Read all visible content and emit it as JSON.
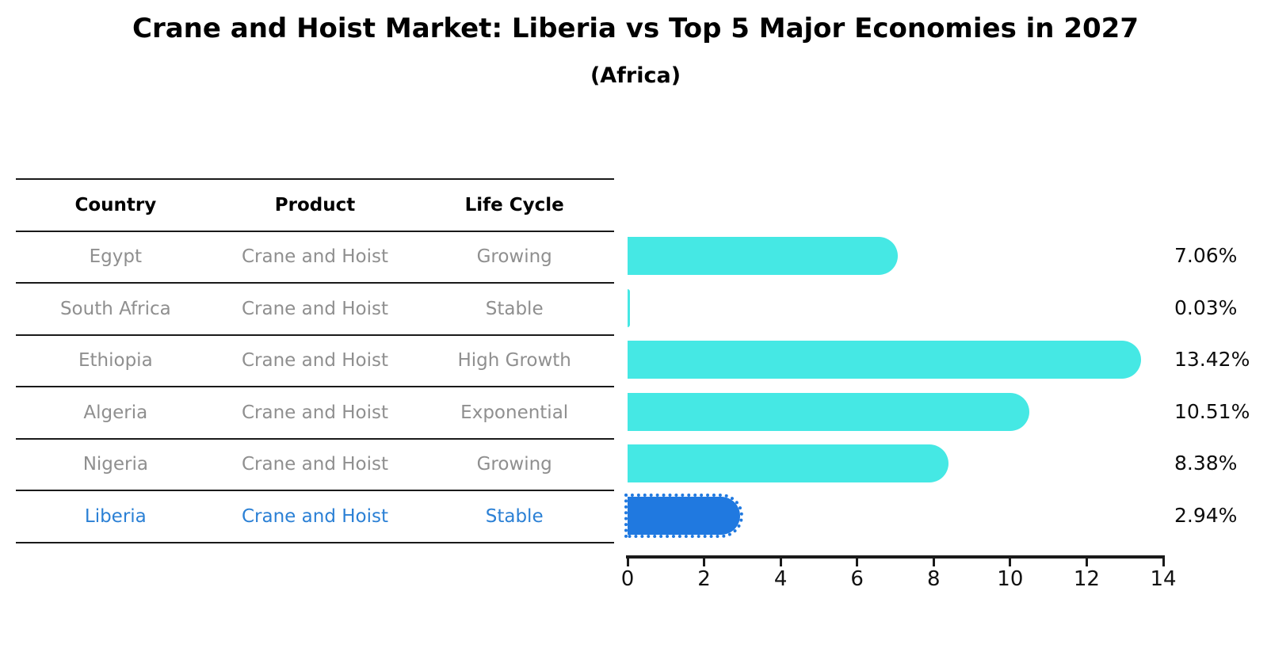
{
  "title": "Crane and Hoist Market: Liberia vs Top 5 Major Economies in 2027",
  "subtitle": "(Africa)",
  "table": {
    "headers": [
      "Country",
      "Product",
      "Life Cycle"
    ],
    "rows": [
      {
        "country": "Egypt",
        "product": "Crane and Hoist",
        "life_cycle": "Growing",
        "highlight": false
      },
      {
        "country": "South Africa",
        "product": "Crane and Hoist",
        "life_cycle": "Stable",
        "highlight": false
      },
      {
        "country": "Ethiopia",
        "product": "Crane and Hoist",
        "life_cycle": "High Growth",
        "highlight": false
      },
      {
        "country": "Algeria",
        "product": "Crane and Hoist",
        "life_cycle": "Exponential",
        "highlight": false
      },
      {
        "country": "Nigeria",
        "product": "Crane and Hoist",
        "life_cycle": "Growing",
        "highlight": false
      },
      {
        "country": "Liberia",
        "product": "Crane and Hoist",
        "life_cycle": "Stable",
        "highlight": true
      }
    ]
  },
  "chart_data": {
    "type": "bar",
    "orientation": "horizontal",
    "title": "Crane and Hoist Market: Liberia vs Top 5 Major Economies in 2027",
    "subtitle": "(Africa)",
    "categories": [
      "Egypt",
      "South Africa",
      "Ethiopia",
      "Algeria",
      "Nigeria",
      "Liberia"
    ],
    "values": [
      7.06,
      0.03,
      13.42,
      10.51,
      8.38,
      2.94
    ],
    "value_labels": [
      "7.06%",
      "0.03%",
      "13.42%",
      "10.51%",
      "8.38%",
      "2.94%"
    ],
    "xlim": [
      0,
      14
    ],
    "x_ticks": [
      0,
      2,
      4,
      6,
      8,
      10,
      12,
      14
    ],
    "grid": false,
    "legend": false,
    "bar_style": "rounded-right-cap",
    "bar_color": "#45e8e4",
    "highlight_index": 5,
    "highlight_bar_color": "#2079e0",
    "highlight_bar_border": "dotted",
    "highlight_text_color": "#2b80d5",
    "axis_color": "#1a1a1a",
    "label_color": "#0d0d0d",
    "table_text_color": "#8f8f8f"
  }
}
